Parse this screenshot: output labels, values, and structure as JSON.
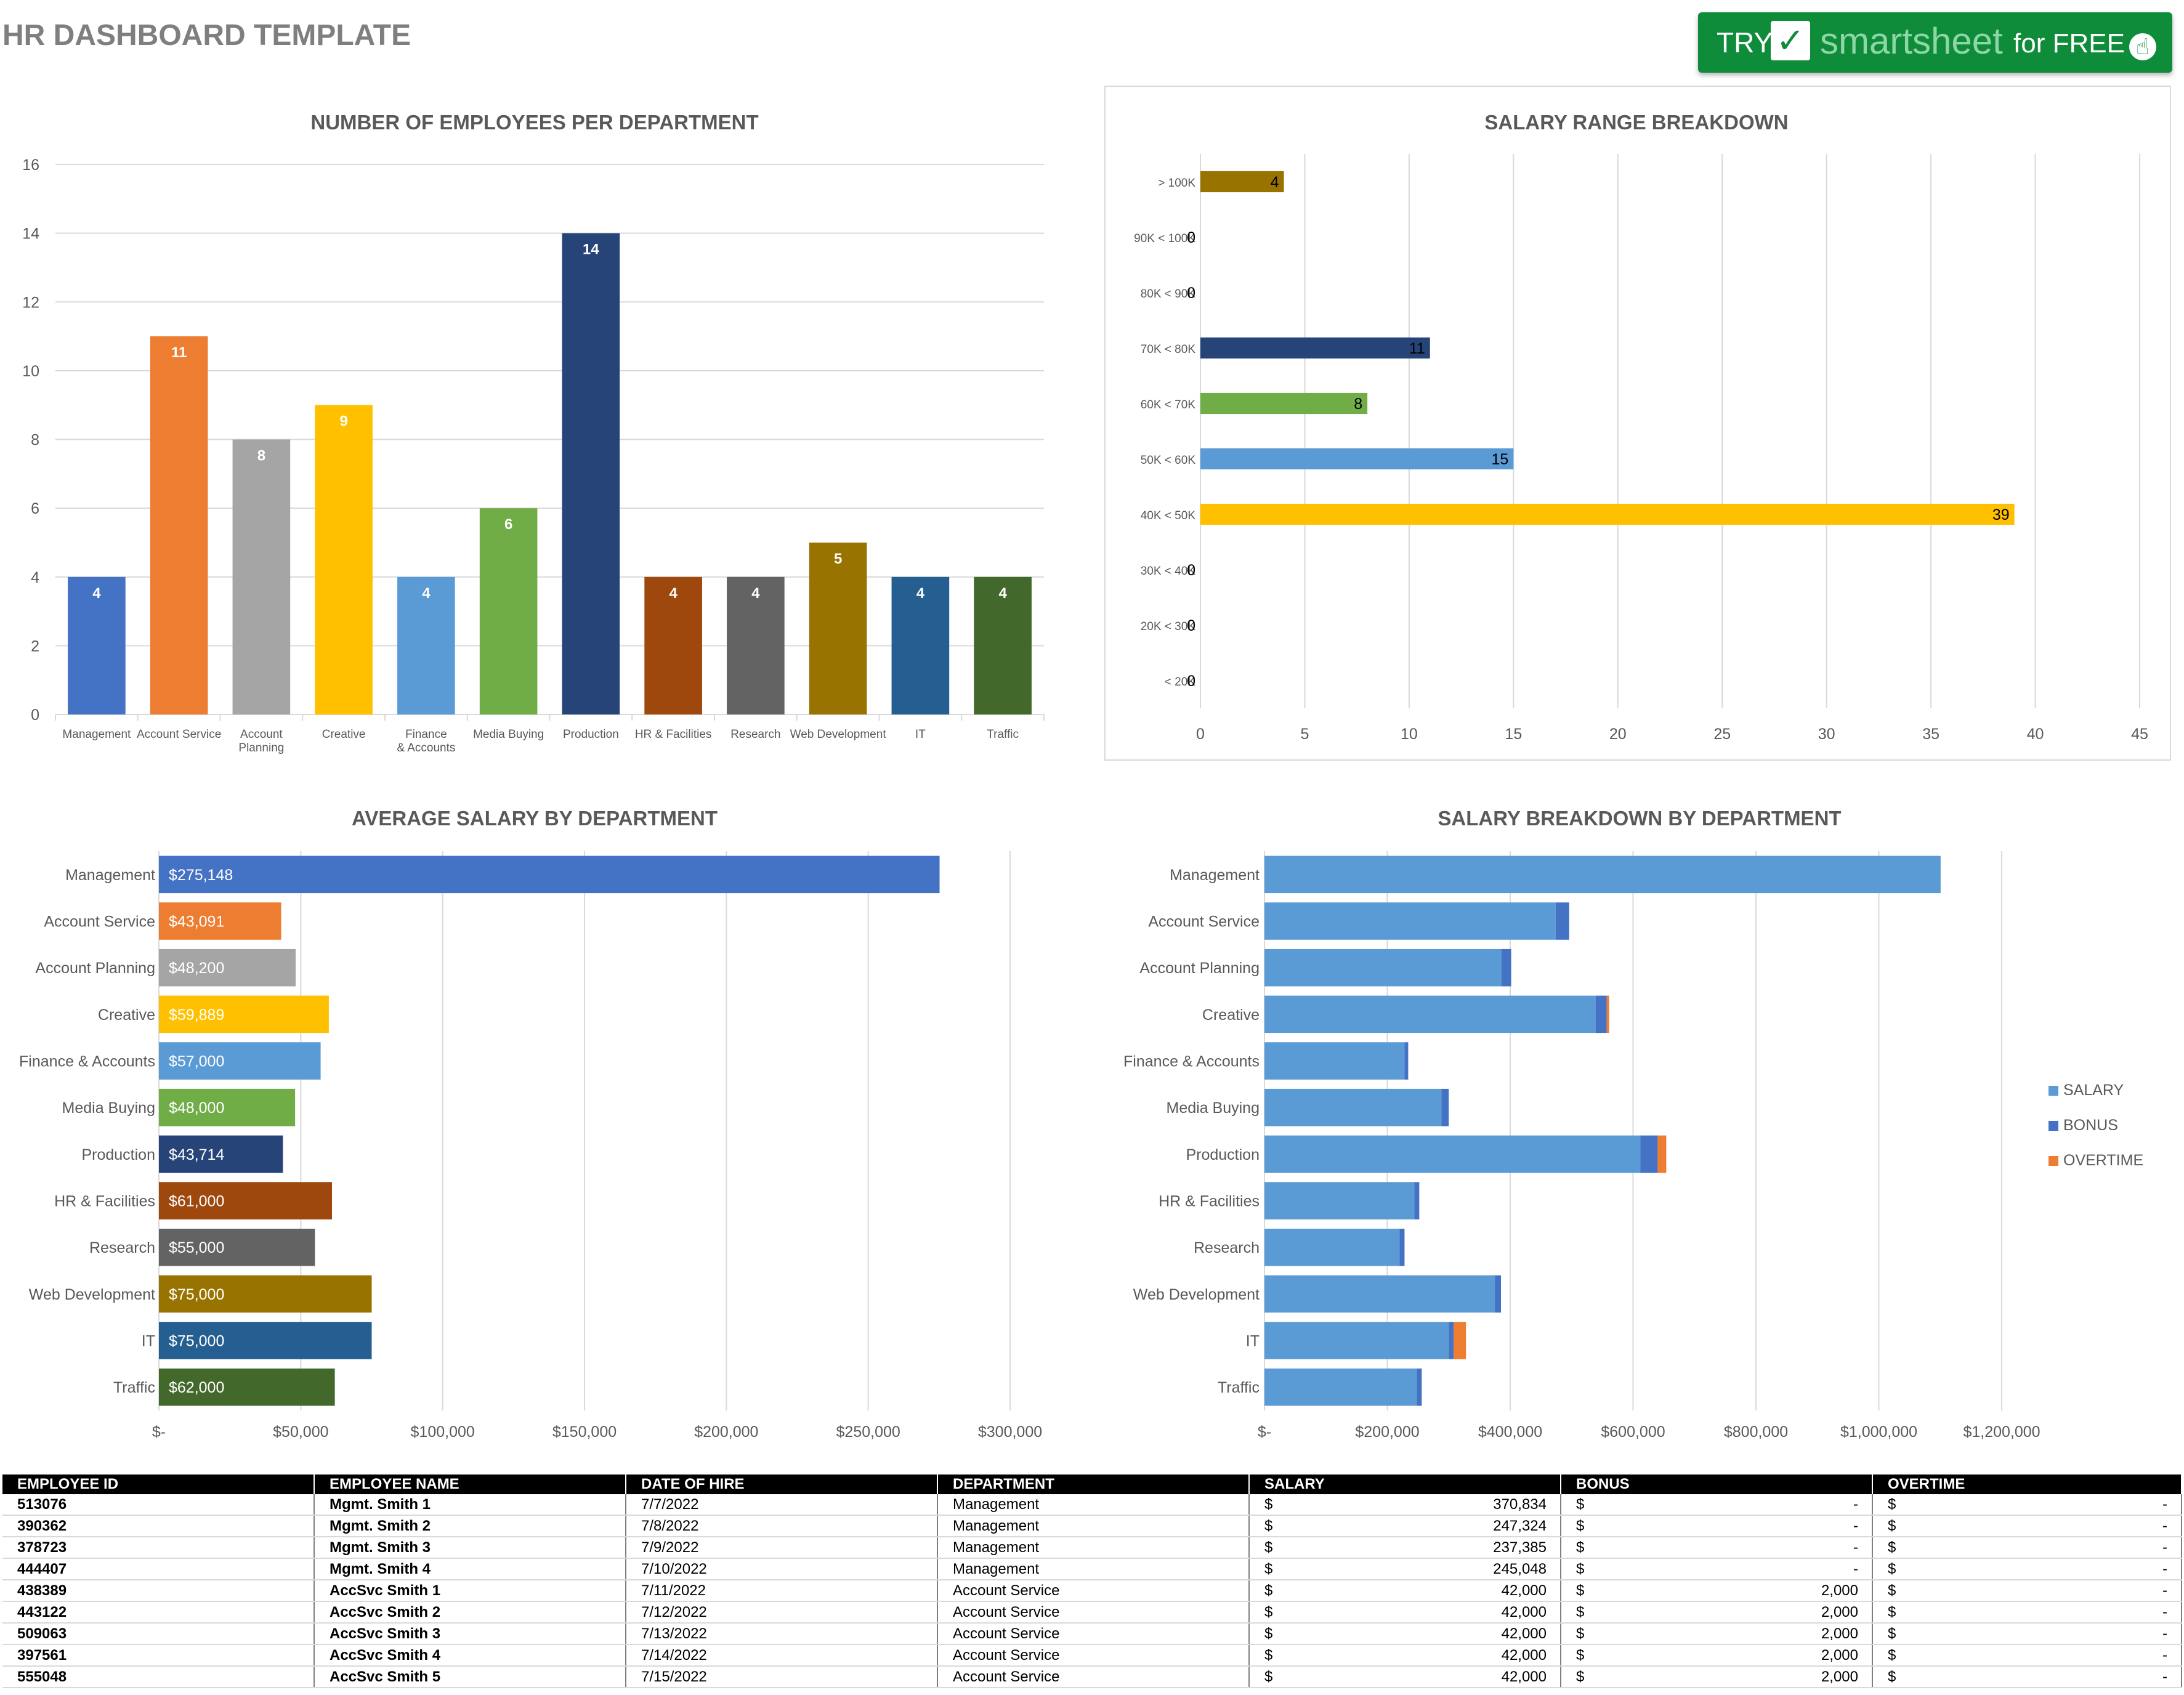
{
  "page": {
    "title": "HR DASHBOARD TEMPLATE"
  },
  "promo": {
    "try": "TRY",
    "check": "✓",
    "brand": "smartsheet",
    "free": "for FREE",
    "cursor": "☝"
  },
  "chart_data": [
    {
      "id": "employees",
      "type": "bar",
      "title": "NUMBER OF EMPLOYEES PER DEPARTMENT",
      "categories": [
        "Management",
        "Account Service",
        "Account Planning",
        "Creative",
        "Finance & Accounts",
        "Media Buying",
        "Production",
        "HR & Facilities",
        "Research",
        "Web Development",
        "IT",
        "Traffic"
      ],
      "values": [
        4,
        11,
        8,
        9,
        4,
        6,
        14,
        4,
        4,
        5,
        4,
        4
      ],
      "colors": [
        "#4472c4",
        "#ed7d31",
        "#a5a5a5",
        "#ffc000",
        "#5b9bd5",
        "#70ad47",
        "#264478",
        "#9e480e",
        "#636363",
        "#997300",
        "#255e91",
        "#43682b"
      ],
      "ylim": [
        0,
        16
      ],
      "yticks": [
        0,
        2,
        4,
        6,
        8,
        10,
        12,
        14,
        16
      ],
      "grid": true
    },
    {
      "id": "salary_range",
      "type": "bar",
      "orientation": "horizontal",
      "title": "SALARY RANGE BREAKDOWN",
      "categories": [
        "> 100K",
        "90K < 100K",
        "80K < 90K",
        "70K < 80K",
        "60K < 70K",
        "50K < 60K",
        "40K < 50K",
        "30K < 40K",
        "20K < 30K",
        "< 20K"
      ],
      "values": [
        4,
        0,
        0,
        11,
        8,
        15,
        39,
        0,
        0,
        0
      ],
      "colors": [
        "#997300",
        "#4472c4",
        "#4472c4",
        "#264478",
        "#70ad47",
        "#5b9bd5",
        "#ffc000",
        "#4472c4",
        "#4472c4",
        "#4472c4"
      ],
      "xlim": [
        0,
        45
      ],
      "xticks": [
        0,
        5,
        10,
        15,
        20,
        25,
        30,
        35,
        40,
        45
      ],
      "grid": true
    },
    {
      "id": "avg_salary",
      "type": "bar",
      "orientation": "horizontal",
      "title": "AVERAGE SALARY BY DEPARTMENT",
      "categories": [
        "Management",
        "Account Service",
        "Account Planning",
        "Creative",
        "Finance & Accounts",
        "Media Buying",
        "Production",
        "HR & Facilities",
        "Research",
        "Web Development",
        "IT",
        "Traffic"
      ],
      "values": [
        275148,
        43091,
        48200,
        59889,
        57000,
        48000,
        43714,
        61000,
        55000,
        75000,
        75000,
        62000
      ],
      "value_labels": [
        "$275,148",
        "$43,091",
        "$48,200",
        "$59,889",
        "$57,000",
        "$48,000",
        "$43,714",
        "$61,000",
        "$55,000",
        "$75,000",
        "$75,000",
        "$62,000"
      ],
      "colors": [
        "#4472c4",
        "#ed7d31",
        "#a5a5a5",
        "#ffc000",
        "#5b9bd5",
        "#70ad47",
        "#264478",
        "#9e480e",
        "#636363",
        "#997300",
        "#255e91",
        "#43682b"
      ],
      "xlim": [
        0,
        300000
      ],
      "xticks": [
        0,
        50000,
        100000,
        150000,
        200000,
        250000,
        300000
      ],
      "xtick_labels": [
        "$-",
        "$50,000",
        "$100,000",
        "$150,000",
        "$200,000",
        "$250,000",
        "$300,000"
      ],
      "grid": true
    },
    {
      "id": "salary_breakdown",
      "type": "bar",
      "orientation": "horizontal",
      "stacked": true,
      "title": "SALARY BREAKDOWN BY DEPARTMENT",
      "categories": [
        "Management",
        "Account Service",
        "Account Planning",
        "Creative",
        "Finance & Accounts",
        "Media Buying",
        "Production",
        "HR & Facilities",
        "Research",
        "Web Development",
        "IT",
        "Traffic"
      ],
      "series": [
        {
          "name": "SALARY",
          "color": "#5b9bd5",
          "values": [
            1100591,
            474000,
            385600,
            539000,
            228000,
            288000,
            612000,
            244000,
            220000,
            375000,
            300000,
            248000
          ]
        },
        {
          "name": "BONUS",
          "color": "#4472c4",
          "values": [
            0,
            22000,
            16000,
            18000,
            6000,
            12000,
            28000,
            8000,
            8000,
            10000,
            8000,
            8000
          ]
        },
        {
          "name": "OVERTIME",
          "color": "#ed7d31",
          "values": [
            0,
            0,
            0,
            4000,
            0,
            0,
            14000,
            0,
            0,
            0,
            20000,
            0
          ]
        }
      ],
      "xlim": [
        0,
        1200000
      ],
      "xticks": [
        0,
        200000,
        400000,
        600000,
        800000,
        1000000,
        1200000
      ],
      "xtick_labels": [
        "$-",
        "$200,000",
        "$400,000",
        "$600,000",
        "$800,000",
        "$1,000,000",
        "$1,200,000"
      ],
      "legend": "right",
      "grid": true
    }
  ],
  "table": {
    "headers": [
      "EMPLOYEE ID",
      "EMPLOYEE NAME",
      "DATE OF HIRE",
      "DEPARTMENT",
      "SALARY",
      "BONUS",
      "OVERTIME"
    ],
    "currency": "$",
    "rows": [
      {
        "id": "513076",
        "name": "Mgmt. Smith 1",
        "date": "7/7/2022",
        "dept": "Management",
        "salary": "370,834",
        "bonus": "-",
        "overtime": "-"
      },
      {
        "id": "390362",
        "name": "Mgmt. Smith 2",
        "date": "7/8/2022",
        "dept": "Management",
        "salary": "247,324",
        "bonus": "-",
        "overtime": "-"
      },
      {
        "id": "378723",
        "name": "Mgmt. Smith 3",
        "date": "7/9/2022",
        "dept": "Management",
        "salary": "237,385",
        "bonus": "-",
        "overtime": "-"
      },
      {
        "id": "444407",
        "name": "Mgmt. Smith 4",
        "date": "7/10/2022",
        "dept": "Management",
        "salary": "245,048",
        "bonus": "-",
        "overtime": "-"
      },
      {
        "id": "438389",
        "name": "AccSvc Smith 1",
        "date": "7/11/2022",
        "dept": "Account Service",
        "salary": "42,000",
        "bonus": "2,000",
        "overtime": "-"
      },
      {
        "id": "443122",
        "name": "AccSvc Smith 2",
        "date": "7/12/2022",
        "dept": "Account Service",
        "salary": "42,000",
        "bonus": "2,000",
        "overtime": "-"
      },
      {
        "id": "509063",
        "name": "AccSvc Smith 3",
        "date": "7/13/2022",
        "dept": "Account Service",
        "salary": "42,000",
        "bonus": "2,000",
        "overtime": "-"
      },
      {
        "id": "397561",
        "name": "AccSvc Smith 4",
        "date": "7/14/2022",
        "dept": "Account Service",
        "salary": "42,000",
        "bonus": "2,000",
        "overtime": "-"
      },
      {
        "id": "555048",
        "name": "AccSvc Smith 5",
        "date": "7/15/2022",
        "dept": "Account Service",
        "salary": "42,000",
        "bonus": "2,000",
        "overtime": "-"
      }
    ]
  }
}
